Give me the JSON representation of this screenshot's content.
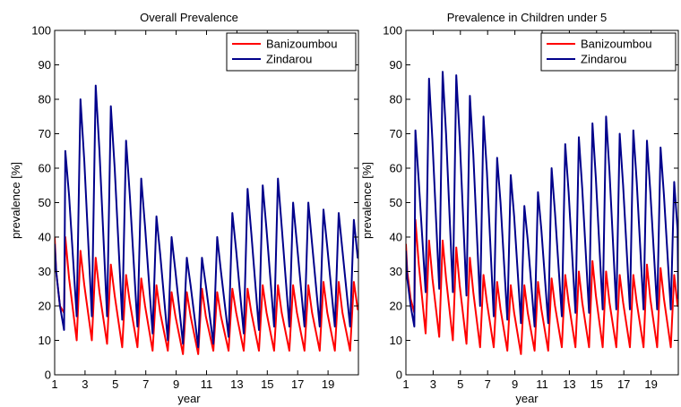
{
  "chart_data": [
    {
      "type": "line",
      "title": "Overall Prevalence",
      "xlabel": "year",
      "ylabel": "prevalence [%]",
      "xlim": [
        1,
        21
      ],
      "ylim": [
        0,
        100
      ],
      "xticks": [
        1,
        3,
        5,
        7,
        9,
        11,
        13,
        15,
        17,
        19
      ],
      "yticks": [
        0,
        10,
        20,
        30,
        40,
        50,
        60,
        70,
        80,
        90,
        100
      ],
      "grid": false,
      "legend": "top-right",
      "series": [
        {
          "name": "Banizoumbou",
          "color": "#ff0000",
          "x": [
            1.0,
            1.1,
            1.35,
            1.62,
            1.7,
            1.95,
            2.45,
            2.7,
            2.95,
            3.45,
            3.7,
            3.95,
            4.45,
            4.7,
            4.95,
            5.45,
            5.7,
            5.95,
            6.45,
            6.7,
            6.95,
            7.45,
            7.7,
            7.95,
            8.45,
            8.7,
            8.95,
            9.45,
            9.7,
            9.95,
            10.45,
            10.7,
            10.95,
            11.45,
            11.7,
            11.95,
            12.45,
            12.7,
            12.95,
            13.45,
            13.7,
            13.95,
            14.45,
            14.7,
            14.95,
            15.45,
            15.7,
            15.95,
            16.45,
            16.7,
            16.95,
            17.45,
            17.7,
            17.95,
            18.45,
            18.7,
            18.95,
            19.45,
            19.7,
            19.95,
            20.45,
            20.7,
            20.95,
            21.0
          ],
          "y": [
            40,
            30,
            20,
            18,
            40,
            28,
            10,
            36,
            26,
            10,
            34,
            24,
            9,
            32,
            23,
            8,
            29,
            21,
            8,
            28,
            20,
            7,
            26,
            18,
            7,
            24,
            17,
            6,
            24,
            17,
            6,
            25,
            17,
            7,
            24,
            17,
            7,
            25,
            18,
            7,
            25,
            18,
            7,
            26,
            18,
            7,
            26,
            18,
            7,
            26,
            18,
            7,
            26,
            18,
            7,
            27,
            18,
            7,
            27,
            18,
            7,
            27,
            19,
            19
          ]
        },
        {
          "name": "Zindarou",
          "color": "#00008b",
          "x": [
            1.0,
            1.1,
            1.35,
            1.62,
            1.7,
            1.95,
            2.45,
            2.7,
            2.95,
            3.45,
            3.7,
            3.95,
            4.45,
            4.7,
            4.95,
            5.45,
            5.7,
            5.95,
            6.45,
            6.7,
            6.95,
            7.45,
            7.7,
            7.95,
            8.45,
            8.7,
            8.95,
            9.45,
            9.7,
            9.95,
            10.45,
            10.7,
            10.95,
            11.45,
            11.7,
            11.95,
            12.45,
            12.7,
            12.95,
            13.45,
            13.7,
            13.95,
            14.45,
            14.7,
            14.95,
            15.45,
            15.7,
            15.95,
            16.45,
            16.7,
            16.95,
            17.45,
            17.7,
            17.95,
            18.45,
            18.7,
            18.95,
            19.45,
            19.7,
            19.95,
            20.45,
            20.7,
            20.95,
            21.0
          ],
          "y": [
            38,
            30,
            20,
            13,
            65,
            52,
            17,
            80,
            62,
            17,
            84,
            65,
            17,
            78,
            60,
            16,
            68,
            52,
            14,
            57,
            43,
            12,
            46,
            35,
            10,
            40,
            30,
            9,
            34,
            26,
            8,
            34,
            26,
            9,
            40,
            30,
            11,
            47,
            36,
            12,
            54,
            41,
            13,
            55,
            42,
            14,
            57,
            43,
            14,
            50,
            38,
            14,
            50,
            38,
            14,
            48,
            37,
            14,
            47,
            36,
            14,
            45,
            34,
            34
          ]
        }
      ]
    },
    {
      "type": "line",
      "title": "Prevalence in Children under 5",
      "xlabel": "year",
      "ylabel": "prevalence [%]",
      "xlim": [
        1,
        21
      ],
      "ylim": [
        0,
        100
      ],
      "xticks": [
        1,
        3,
        5,
        7,
        9,
        11,
        13,
        15,
        17,
        19
      ],
      "yticks": [
        0,
        10,
        20,
        30,
        40,
        50,
        60,
        70,
        80,
        90,
        100
      ],
      "grid": false,
      "legend": "top-right",
      "series": [
        {
          "name": "Banizoumbou",
          "color": "#ff0000",
          "x": [
            1.0,
            1.1,
            1.35,
            1.62,
            1.7,
            1.95,
            2.45,
            2.7,
            2.95,
            3.45,
            3.7,
            3.95,
            4.45,
            4.7,
            4.95,
            5.45,
            5.7,
            5.95,
            6.45,
            6.7,
            6.95,
            7.45,
            7.7,
            7.95,
            8.45,
            8.7,
            8.95,
            9.45,
            9.7,
            9.95,
            10.45,
            10.7,
            10.95,
            11.45,
            11.7,
            11.95,
            12.45,
            12.7,
            12.95,
            13.45,
            13.7,
            13.95,
            14.45,
            14.7,
            14.95,
            15.45,
            15.7,
            15.95,
            16.45,
            16.7,
            16.95,
            17.45,
            17.7,
            17.95,
            18.45,
            18.7,
            18.95,
            19.45,
            19.7,
            19.95,
            20.45,
            20.7,
            20.95,
            21.0
          ],
          "y": [
            38,
            30,
            22,
            18,
            45,
            32,
            12,
            39,
            28,
            11,
            39,
            28,
            10,
            37,
            26,
            9,
            34,
            24,
            8,
            29,
            21,
            8,
            27,
            19,
            7,
            26,
            18,
            6,
            26,
            18,
            7,
            27,
            19,
            7,
            28,
            20,
            8,
            29,
            21,
            8,
            30,
            21,
            8,
            33,
            23,
            8,
            30,
            21,
            8,
            29,
            21,
            8,
            29,
            21,
            8,
            32,
            22,
            8,
            31,
            22,
            8,
            29,
            20,
            20
          ]
        },
        {
          "name": "Zindarou",
          "color": "#00008b",
          "x": [
            1.0,
            1.1,
            1.35,
            1.62,
            1.7,
            1.95,
            2.45,
            2.7,
            2.95,
            3.45,
            3.7,
            3.95,
            4.45,
            4.7,
            4.95,
            5.45,
            5.7,
            5.95,
            6.45,
            6.7,
            6.95,
            7.45,
            7.7,
            7.95,
            8.45,
            8.7,
            8.95,
            9.45,
            9.7,
            9.95,
            10.45,
            10.7,
            10.95,
            11.45,
            11.7,
            11.95,
            12.45,
            12.7,
            12.95,
            13.45,
            13.7,
            13.95,
            14.45,
            14.7,
            14.95,
            15.45,
            15.7,
            15.95,
            16.45,
            16.7,
            16.95,
            17.45,
            17.7,
            17.95,
            18.45,
            18.7,
            18.95,
            19.45,
            19.7,
            19.95,
            20.45,
            20.7,
            20.95,
            21.0
          ],
          "y": [
            36,
            28,
            20,
            14,
            71,
            56,
            24,
            86,
            68,
            25,
            88,
            70,
            24,
            87,
            69,
            23,
            81,
            64,
            20,
            75,
            59,
            17,
            63,
            50,
            16,
            58,
            46,
            15,
            49,
            39,
            14,
            53,
            42,
            15,
            60,
            47,
            17,
            67,
            53,
            18,
            69,
            54,
            18,
            73,
            57,
            19,
            75,
            59,
            19,
            70,
            55,
            19,
            71,
            56,
            19,
            68,
            53,
            19,
            66,
            52,
            19,
            56,
            42,
            22
          ]
        }
      ]
    }
  ]
}
